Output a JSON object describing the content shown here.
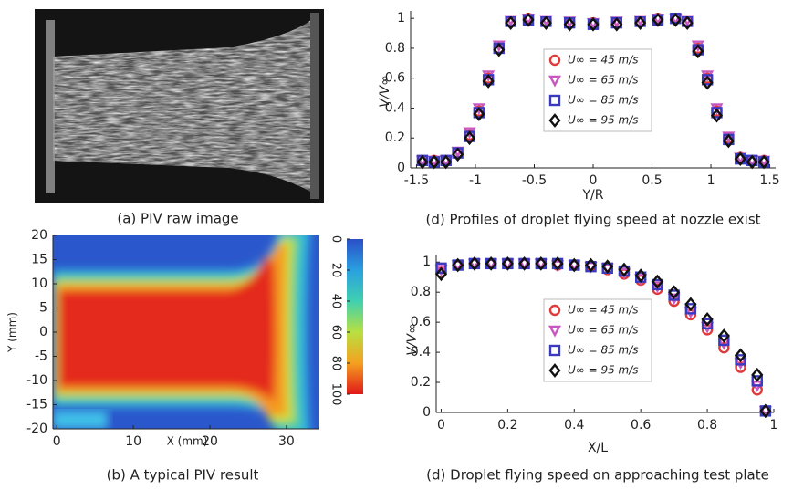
{
  "chart_data": [
    {
      "type": "image",
      "caption": "(a) PIV raw image"
    },
    {
      "type": "heatmap",
      "caption": "(b) A typical PIV result",
      "xlabel": "X (mm)",
      "ylabel": "Y (mm)",
      "xlim": [
        -0.5,
        34.3
      ],
      "xticks": [
        0,
        10,
        20,
        30
      ],
      "ylim": [
        -20,
        20
      ],
      "yticks": [
        -20,
        -15,
        -10,
        -5,
        0,
        5,
        10,
        15,
        20
      ],
      "colorbar_lim": [
        0,
        100
      ],
      "colorbar_ticks": [
        0,
        20,
        40,
        60,
        80,
        100
      ]
    },
    {
      "type": "scatter",
      "caption": "(d) Profiles of droplet flying speed at nozzle exist",
      "xlabel": "Y/R",
      "ylabel": "V/V∞",
      "xlim": [
        -1.55,
        1.55
      ],
      "xticks": [
        -1.5,
        -1,
        -0.5,
        0,
        0.5,
        1,
        1.5
      ],
      "ylim": [
        0,
        1.05
      ],
      "yticks": [
        0,
        0.2,
        0.4,
        0.6,
        0.8,
        1
      ],
      "x": [
        -1.45,
        -1.35,
        -1.25,
        -1.15,
        -1.05,
        -0.97,
        -0.89,
        -0.8,
        -0.7,
        -0.55,
        -0.4,
        -0.2,
        0,
        0.2,
        0.4,
        0.55,
        0.7,
        0.8,
        0.89,
        0.97,
        1.05,
        1.15,
        1.25,
        1.35,
        1.45
      ],
      "series": [
        {
          "name": "U∞ = 45 m/s",
          "color": "#e03a3a",
          "marker": "o",
          "values": [
            0.05,
            0.05,
            0.05,
            0.1,
            0.22,
            0.38,
            0.6,
            0.8,
            0.98,
            1.0,
            0.98,
            0.97,
            0.97,
            0.97,
            0.98,
            1.0,
            1.0,
            0.98,
            0.8,
            0.6,
            0.38,
            0.2,
            0.07,
            0.05,
            0.05
          ]
        },
        {
          "name": "U∞ = 65 m/s",
          "color": "#c858c0",
          "marker": "v",
          "values": [
            0.05,
            0.05,
            0.05,
            0.11,
            0.24,
            0.4,
            0.62,
            0.82,
            0.99,
            1.0,
            0.99,
            0.98,
            0.97,
            0.98,
            0.99,
            1.0,
            1.0,
            0.99,
            0.82,
            0.62,
            0.4,
            0.21,
            0.07,
            0.05,
            0.05
          ]
        },
        {
          "name": "U∞ = 85 m/s",
          "color": "#3a3ac0",
          "marker": "s",
          "values": [
            0.05,
            0.04,
            0.05,
            0.1,
            0.21,
            0.37,
            0.59,
            0.8,
            0.98,
            0.99,
            0.98,
            0.97,
            0.96,
            0.97,
            0.98,
            0.99,
            1.0,
            0.98,
            0.79,
            0.59,
            0.37,
            0.19,
            0.06,
            0.05,
            0.04
          ]
        },
        {
          "name": "U∞ = 95 m/s",
          "color": "#111111",
          "marker": "D",
          "values": [
            0.04,
            0.04,
            0.04,
            0.09,
            0.2,
            0.36,
            0.58,
            0.79,
            0.97,
            0.99,
            0.97,
            0.96,
            0.96,
            0.96,
            0.97,
            0.99,
            0.99,
            0.97,
            0.78,
            0.57,
            0.35,
            0.18,
            0.06,
            0.04,
            0.04
          ]
        }
      ]
    },
    {
      "type": "scatter",
      "caption": "(d) Droplet flying speed on approaching test plate",
      "xlabel": "X/L",
      "ylabel": "V/V∞",
      "xlim": [
        -0.015,
        1
      ],
      "xticks": [
        0,
        0.2,
        0.4,
        0.6,
        0.8,
        1
      ],
      "ylim": [
        0,
        1.05
      ],
      "yticks": [
        0,
        0.2,
        0.4,
        0.6,
        0.8,
        1
      ],
      "x": [
        0,
        0.05,
        0.1,
        0.15,
        0.2,
        0.25,
        0.3,
        0.35,
        0.4,
        0.45,
        0.5,
        0.55,
        0.6,
        0.65,
        0.7,
        0.75,
        0.8,
        0.85,
        0.9,
        0.95,
        0.975
      ],
      "series": [
        {
          "name": "U∞ = 45 m/s",
          "color": "#e03a3a",
          "marker": "o",
          "values": [
            0.93,
            0.98,
            0.99,
            0.99,
            0.99,
            0.99,
            0.99,
            0.98,
            0.98,
            0.97,
            0.95,
            0.92,
            0.88,
            0.82,
            0.74,
            0.65,
            0.55,
            0.43,
            0.3,
            0.15,
            0.01
          ]
        },
        {
          "name": "U∞ = 65 m/s",
          "color": "#c858c0",
          "marker": "v",
          "values": [
            0.95,
            0.98,
            0.99,
            0.99,
            0.99,
            0.99,
            0.99,
            0.98,
            0.98,
            0.97,
            0.96,
            0.93,
            0.89,
            0.84,
            0.76,
            0.67,
            0.57,
            0.46,
            0.33,
            0.18,
            0.01
          ]
        },
        {
          "name": "U∞ = 85 m/s",
          "color": "#3a3ac0",
          "marker": "s",
          "values": [
            0.96,
            0.98,
            0.99,
            0.99,
            0.99,
            0.99,
            0.99,
            0.99,
            0.98,
            0.97,
            0.96,
            0.94,
            0.9,
            0.85,
            0.78,
            0.69,
            0.59,
            0.48,
            0.35,
            0.21,
            0.01
          ]
        },
        {
          "name": "U∞ = 95 m/s",
          "color": "#111111",
          "marker": "D",
          "values": [
            0.92,
            0.98,
            0.99,
            0.99,
            0.99,
            0.99,
            0.99,
            0.99,
            0.98,
            0.98,
            0.97,
            0.95,
            0.91,
            0.87,
            0.8,
            0.72,
            0.62,
            0.51,
            0.38,
            0.25,
            0.01
          ]
        }
      ]
    }
  ]
}
